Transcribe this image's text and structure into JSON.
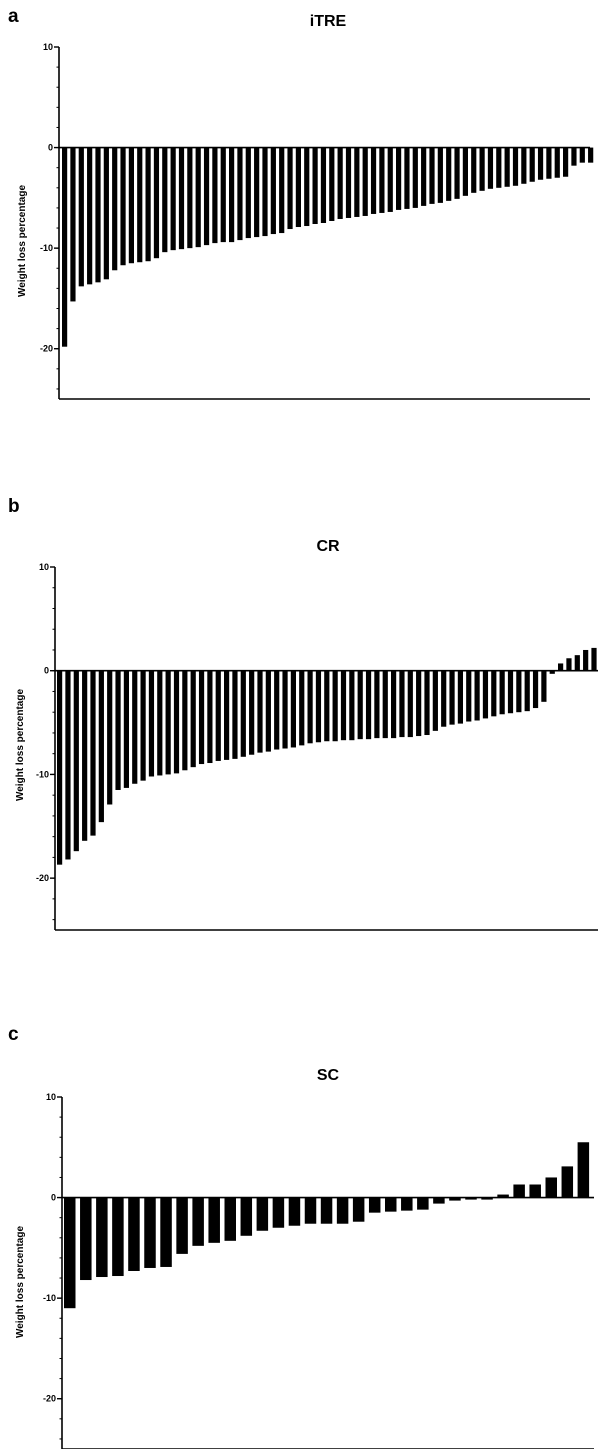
{
  "chart_data": [
    {
      "type": "bar",
      "panel": "a",
      "title": "iTRE",
      "ylabel": "Weight loss percentage",
      "xlabel": "",
      "ylim": [
        -25,
        10
      ],
      "yticks": [
        10,
        0,
        -10,
        -20
      ],
      "values": [
        -19.8,
        -15.3,
        -13.8,
        -13.6,
        -13.4,
        -13.1,
        -12.2,
        -11.7,
        -11.5,
        -11.4,
        -11.3,
        -11.0,
        -10.4,
        -10.2,
        -10.1,
        -10.0,
        -9.9,
        -9.7,
        -9.5,
        -9.4,
        -9.4,
        -9.2,
        -9.0,
        -8.9,
        -8.8,
        -8.6,
        -8.5,
        -8.1,
        -7.9,
        -7.8,
        -7.6,
        -7.5,
        -7.3,
        -7.1,
        -7.0,
        -6.9,
        -6.8,
        -6.6,
        -6.5,
        -6.4,
        -6.2,
        -6.1,
        -6.0,
        -5.8,
        -5.6,
        -5.5,
        -5.3,
        -5.1,
        -4.8,
        -4.5,
        -4.3,
        -4.1,
        -4.0,
        -3.9,
        -3.8,
        -3.6,
        -3.4,
        -3.2,
        -3.1,
        -3.0,
        -2.9,
        -1.8,
        -1.5,
        -1.5
      ]
    },
    {
      "type": "bar",
      "panel": "b",
      "title": "CR",
      "ylabel": "Weight loss percentage",
      "xlabel": "",
      "ylim": [
        -25,
        10
      ],
      "yticks": [
        10,
        0,
        -10,
        -20
      ],
      "values": [
        -18.7,
        -18.2,
        -17.4,
        -16.4,
        -15.9,
        -14.6,
        -12.9,
        -11.5,
        -11.3,
        -10.9,
        -10.6,
        -10.2,
        -10.1,
        -10.0,
        -9.9,
        -9.6,
        -9.3,
        -9.0,
        -8.9,
        -8.7,
        -8.6,
        -8.5,
        -8.3,
        -8.1,
        -7.9,
        -7.8,
        -7.6,
        -7.5,
        -7.4,
        -7.2,
        -7.0,
        -6.9,
        -6.8,
        -6.8,
        -6.7,
        -6.7,
        -6.6,
        -6.6,
        -6.5,
        -6.5,
        -6.5,
        -6.4,
        -6.4,
        -6.3,
        -6.2,
        -5.8,
        -5.4,
        -5.2,
        -5.1,
        -4.9,
        -4.8,
        -4.6,
        -4.4,
        -4.2,
        -4.1,
        -4.0,
        -3.9,
        -3.6,
        -3.0,
        -0.3,
        0.7,
        1.2,
        1.5,
        2.0,
        2.2
      ]
    },
    {
      "type": "bar",
      "panel": "c",
      "title": "SC",
      "ylabel": "Weight loss percentage",
      "xlabel": "",
      "ylim": [
        -25,
        10
      ],
      "yticks": [
        10,
        0,
        -10,
        -20
      ],
      "values": [
        -11.0,
        -8.2,
        -7.9,
        -7.8,
        -7.3,
        -7.0,
        -6.9,
        -5.6,
        -4.8,
        -4.5,
        -4.3,
        -3.8,
        -3.3,
        -3.0,
        -2.8,
        -2.6,
        -2.6,
        -2.6,
        -2.4,
        -1.5,
        -1.4,
        -1.3,
        -1.2,
        -0.6,
        -0.3,
        -0.2,
        -0.2,
        0.3,
        1.3,
        1.3,
        2.0,
        3.1,
        5.5
      ]
    }
  ]
}
